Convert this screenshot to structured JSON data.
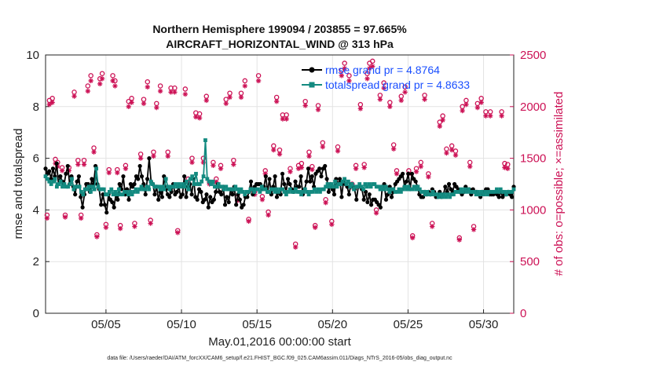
{
  "chart_data": {
    "type": "line",
    "title": "Northern Hemisphere 199094 / 203855 = 97.665%",
    "subtitle": "AIRCRAFT_HORIZONTAL_WIND @ 313 hPa",
    "xlabel": "May.01,2016 00:00:00 start",
    "ylabel": "rmse and totalspread",
    "ylabel_right": "# of obs: o=possible; ×=assimilated",
    "footnote": "data file: /Users/raeder/DAI/ATM_forcXX/CAM6_setup/f.e21.FHIST_BGC.f09_025.CAM6assim.011/Diags_NTrS_2016-05/obs_diag_output.nc",
    "xlim": [
      1,
      32
    ],
    "ylim": [
      0,
      10
    ],
    "ylim_right": [
      0,
      2500
    ],
    "xtick_values": [
      5,
      10,
      15,
      20,
      25,
      30
    ],
    "xtick_labels": [
      "05/05",
      "05/10",
      "05/15",
      "05/20",
      "05/25",
      "05/30"
    ],
    "ytick_values": [
      0,
      2,
      4,
      6,
      8,
      10
    ],
    "ytick_labels": [
      "0",
      "2",
      "4",
      "6",
      "8",
      "10"
    ],
    "ytick_right_values": [
      0,
      500,
      1000,
      1500,
      2000,
      2500
    ],
    "ytick_right_labels": [
      "0",
      "500",
      "1000",
      "1500",
      "2000",
      "2500"
    ],
    "legend_position": "top-right",
    "colors": {
      "rmse": "#000000",
      "spread": "#138a80",
      "obs": "#cc1155",
      "legend": "#1a4fff"
    },
    "series": [
      {
        "name": "rmse grand pr = 4.8764",
        "values": [
          5.6,
          5.4,
          5.5,
          5.2,
          5.6,
          5.3,
          5.8,
          5.0,
          5.3,
          5.1,
          5.0,
          5.4,
          5.7,
          5.0,
          5.3,
          4.9,
          4.6,
          5.1,
          5.3,
          4.5,
          4.1,
          4.6,
          5.0,
          5.0,
          4.7,
          5.2,
          5.0,
          5.7,
          5.0,
          4.8,
          4.2,
          4.6,
          4.2,
          3.9,
          4.6,
          4.4,
          4.3,
          4.1,
          4.6,
          4.4,
          5.0,
          4.8,
          5.3,
          4.6,
          4.8,
          4.4,
          5.0,
          4.9,
          5.0,
          5.3,
          5.2,
          5.7,
          5.3,
          5.0,
          4.6,
          5.2,
          6.0,
          5.1,
          5.0,
          4.6,
          4.9,
          4.4,
          4.7,
          4.5,
          5.3,
          4.8,
          4.6,
          4.5,
          4.7,
          5.0,
          4.6,
          4.7,
          4.9,
          4.5,
          4.6,
          5.3,
          4.5,
          4.9,
          5.0,
          4.6,
          5.2,
          4.5,
          4.4,
          4.8,
          4.7,
          4.3,
          4.4,
          4.6,
          4.1,
          4.5,
          4.3,
          4.4,
          4.7,
          5.0,
          4.7,
          4.6,
          4.9,
          4.2,
          4.5,
          4.3,
          4.8,
          4.6,
          4.9,
          4.2,
          4.6,
          4.4,
          4.1,
          4.2,
          4.5,
          4.5,
          4.7,
          5.1,
          4.6,
          4.9,
          5.0,
          5.0,
          5.0,
          4.8,
          4.9,
          5.3,
          4.7,
          5.2,
          4.6,
          4.9,
          5.3,
          4.5,
          4.7,
          4.6,
          5.4,
          5.0,
          4.7,
          5.2,
          5.0,
          4.8,
          4.7,
          5.1,
          4.9,
          4.9,
          5.3,
          4.6,
          4.8,
          5.1,
          5.6,
          5.1,
          5.3,
          4.9,
          5.4,
          5.5,
          5.6,
          5.3,
          5.6,
          5.7,
          5.2,
          4.7,
          5.0,
          4.8,
          4.6,
          5.2,
          5.0,
          5.2,
          4.5,
          5.1,
          5.0,
          4.9,
          4.6,
          5.0,
          4.9,
          4.8,
          4.4,
          4.9,
          4.9,
          4.8,
          4.4,
          4.7,
          4.3,
          4.6,
          4.2,
          4.4,
          4.4,
          4.3,
          4.2,
          4.1,
          4.9,
          5.0,
          4.4,
          4.6,
          4.9,
          4.5,
          4.7,
          5.0,
          5.1,
          5.2,
          5.3,
          5.4,
          4.9,
          5.1,
          5.4,
          4.8,
          5.4,
          5.2,
          5.1,
          4.9,
          4.6,
          4.5,
          4.5,
          4.7,
          4.6,
          4.7,
          4.6,
          4.8,
          4.7,
          4.5,
          4.5,
          4.7,
          4.5,
          4.6,
          4.9,
          4.7,
          5.0,
          4.8,
          4.7,
          5.0,
          4.9,
          4.8,
          4.7,
          4.6,
          4.7,
          4.9,
          4.8,
          4.8,
          4.6,
          4.8,
          4.7,
          4.7,
          4.6,
          4.5,
          4.7,
          4.7,
          4.8,
          4.8,
          4.6,
          4.6,
          4.6,
          4.7,
          4.6,
          4.5,
          4.7,
          4.5,
          4.6,
          4.6,
          4.7,
          4.6,
          4.5,
          4.9
        ]
      },
      {
        "name": "totalspread grand pr = 4.8633",
        "values": [
          5.3,
          5.2,
          5.1,
          5.0,
          5.1,
          5.2,
          4.9,
          5.0,
          5.1,
          4.9,
          5.0,
          4.9,
          4.9,
          5.0,
          5.2,
          4.8,
          4.9,
          4.9,
          4.9,
          4.7,
          4.6,
          4.8,
          4.8,
          4.9,
          4.7,
          4.9,
          4.8,
          5.6,
          4.9,
          4.8,
          4.8,
          4.8,
          4.6,
          4.6,
          4.7,
          4.8,
          4.6,
          4.7,
          4.6,
          4.8,
          4.6,
          4.6,
          4.7,
          4.7,
          4.6,
          4.7,
          4.6,
          4.7,
          4.8,
          4.7,
          4.8,
          4.9,
          4.8,
          4.8,
          4.9,
          4.8,
          5.1,
          5.0,
          4.9,
          4.9,
          4.9,
          4.8,
          4.9,
          4.8,
          5.2,
          4.9,
          4.8,
          4.9,
          4.9,
          5.0,
          4.9,
          5.0,
          4.9,
          5.0,
          4.9,
          5.1,
          4.8,
          5.2,
          5.3,
          5.0,
          5.4,
          5.0,
          5.0,
          5.1,
          5.3,
          6.7,
          5.2,
          5.1,
          5.0,
          5.1,
          4.9,
          4.9,
          5.0,
          4.9,
          4.9,
          4.8,
          4.9,
          4.8,
          4.8,
          4.8,
          4.8,
          4.9,
          4.8,
          4.7,
          4.8,
          4.7,
          4.6,
          4.7,
          4.7,
          4.8,
          4.8,
          4.7,
          4.8,
          4.8,
          4.7,
          4.9,
          4.8,
          4.8,
          4.7,
          4.7,
          4.8,
          4.8,
          4.7,
          4.8,
          4.7,
          4.8,
          4.8,
          4.7,
          4.6,
          4.7,
          4.8,
          4.7,
          4.7,
          4.8,
          4.7,
          4.7,
          4.6,
          4.7,
          4.8,
          4.7,
          4.6,
          4.7,
          4.7,
          4.8,
          4.7,
          4.8,
          4.7,
          4.8,
          4.8,
          4.9,
          5.0,
          4.9,
          5.0,
          4.9,
          5.1,
          4.9,
          5.0,
          5.0,
          5.1,
          5.2,
          5.0,
          5.1,
          4.9,
          5.0,
          4.8,
          4.9,
          4.9,
          5.0,
          4.9,
          4.8,
          5.0,
          4.9,
          5.0,
          4.9,
          5.0,
          5.0,
          4.9,
          4.9,
          4.8,
          4.9,
          4.8,
          4.9,
          4.8,
          4.7,
          4.8,
          4.8,
          4.7,
          4.7,
          4.8,
          4.7,
          4.8,
          4.9,
          4.8,
          4.9,
          4.8,
          4.8,
          4.9,
          4.8,
          4.9,
          4.8,
          4.7,
          4.7,
          4.6,
          4.7,
          4.6,
          4.6,
          4.7,
          4.6,
          4.6,
          4.5,
          4.6,
          4.5,
          4.6,
          4.5,
          4.6,
          4.5,
          4.6,
          4.6,
          4.7,
          4.7,
          4.7,
          4.8,
          4.7,
          4.8,
          4.7,
          4.8,
          4.7,
          4.7,
          4.7,
          4.6,
          4.7,
          4.6,
          4.7,
          4.6,
          4.7,
          4.6,
          4.7,
          4.7,
          4.7,
          4.7,
          4.8,
          4.7,
          4.8,
          4.7,
          4.7,
          4.6,
          4.7,
          4.7,
          4.7,
          4.8
        ]
      }
    ],
    "obs_possible": [
      [
        1.1,
        950
      ],
      [
        1.25,
        2060
      ],
      [
        1.45,
        2080
      ],
      [
        1.65,
        1490
      ],
      [
        1.8,
        1460
      ],
      [
        2.1,
        1410
      ],
      [
        2.3,
        950
      ],
      [
        2.55,
        1410
      ],
      [
        2.9,
        2140
      ],
      [
        3.15,
        1480
      ],
      [
        3.35,
        950
      ],
      [
        3.55,
        1480
      ],
      [
        3.8,
        2200
      ],
      [
        4.0,
        2300
      ],
      [
        4.2,
        1600
      ],
      [
        4.4,
        760
      ],
      [
        4.6,
        2270
      ],
      [
        4.75,
        2320
      ],
      [
        5.0,
        860
      ],
      [
        5.2,
        1390
      ],
      [
        5.45,
        2300
      ],
      [
        5.6,
        2250
      ],
      [
        5.75,
        1390
      ],
      [
        5.95,
        850
      ],
      [
        6.3,
        1430
      ],
      [
        6.5,
        2050
      ],
      [
        6.7,
        2080
      ],
      [
        6.9,
        870
      ],
      [
        7.3,
        1540
      ],
      [
        7.5,
        2070
      ],
      [
        7.75,
        2240
      ],
      [
        7.95,
        900
      ],
      [
        8.15,
        1560
      ],
      [
        8.35,
        2030
      ],
      [
        8.6,
        2200
      ],
      [
        9.1,
        1560
      ],
      [
        9.3,
        2180
      ],
      [
        9.55,
        2180
      ],
      [
        9.75,
        800
      ],
      [
        10.25,
        2170
      ],
      [
        10.45,
        1300
      ],
      [
        10.7,
        1500
      ],
      [
        10.95,
        1940
      ],
      [
        11.2,
        1930
      ],
      [
        11.45,
        1500
      ],
      [
        11.65,
        2100
      ],
      [
        11.85,
        1270
      ],
      [
        12.1,
        1460
      ],
      [
        12.3,
        1300
      ],
      [
        12.6,
        1430
      ],
      [
        12.95,
        2070
      ],
      [
        13.2,
        2130
      ],
      [
        13.45,
        1480
      ],
      [
        13.7,
        1120
      ],
      [
        13.95,
        2130
      ],
      [
        14.2,
        2250
      ],
      [
        14.45,
        910
      ],
      [
        14.85,
        1180
      ],
      [
        15.1,
        2300
      ],
      [
        15.35,
        1130
      ],
      [
        15.55,
        1380
      ],
      [
        15.75,
        980
      ],
      [
        16.1,
        1620
      ],
      [
        16.3,
        2090
      ],
      [
        16.5,
        1580
      ],
      [
        16.7,
        1920
      ],
      [
        16.95,
        1920
      ],
      [
        17.2,
        1400
      ],
      [
        17.55,
        670
      ],
      [
        17.75,
        1430
      ],
      [
        17.95,
        1450
      ],
      [
        18.2,
        2050
      ],
      [
        18.45,
        1560
      ],
      [
        18.65,
        1420
      ],
      [
        18.85,
        850
      ],
      [
        19.05,
        2010
      ],
      [
        19.35,
        1650
      ],
      [
        19.55,
        1100
      ],
      [
        19.95,
        890
      ],
      [
        20.35,
        1610
      ],
      [
        20.6,
        2350
      ],
      [
        20.8,
        2420
      ],
      [
        21.1,
        2300
      ],
      [
        21.3,
        1250
      ],
      [
        21.55,
        1430
      ],
      [
        21.85,
        2020
      ],
      [
        22.1,
        1440
      ],
      [
        22.3,
        2320
      ],
      [
        22.45,
        2420
      ],
      [
        22.65,
        2440
      ],
      [
        22.9,
        1000
      ],
      [
        23.15,
        2110
      ],
      [
        23.4,
        2230
      ],
      [
        23.8,
        2040
      ],
      [
        24.05,
        1630
      ],
      [
        24.25,
        1380
      ],
      [
        24.55,
        2100
      ],
      [
        24.8,
        2190
      ],
      [
        25.05,
        1380
      ],
      [
        25.3,
        750
      ],
      [
        25.55,
        1400
      ],
      [
        25.85,
        1460
      ],
      [
        26.1,
        2110
      ],
      [
        26.35,
        1350
      ],
      [
        26.6,
        870
      ],
      [
        27.1,
        1850
      ],
      [
        27.3,
        1910
      ],
      [
        27.55,
        1590
      ],
      [
        27.9,
        1620
      ],
      [
        28.15,
        1570
      ],
      [
        28.4,
        730
      ],
      [
        28.6,
        2000
      ],
      [
        28.85,
        2060
      ],
      [
        29.1,
        1460
      ],
      [
        29.35,
        840
      ],
      [
        29.6,
        2030
      ],
      [
        29.85,
        2080
      ],
      [
        30.15,
        1950
      ],
      [
        30.45,
        1950
      ],
      [
        31.2,
        1950
      ],
      [
        31.4,
        1450
      ],
      [
        31.6,
        1440
      ]
    ],
    "obs_assimilated": [
      [
        1.1,
        920
      ],
      [
        1.25,
        2020
      ],
      [
        1.45,
        2040
      ],
      [
        1.65,
        1450
      ],
      [
        1.8,
        1420
      ],
      [
        2.1,
        1380
      ],
      [
        2.3,
        930
      ],
      [
        2.55,
        1380
      ],
      [
        2.9,
        2100
      ],
      [
        3.15,
        1440
      ],
      [
        3.35,
        920
      ],
      [
        3.55,
        1440
      ],
      [
        3.8,
        2150
      ],
      [
        4.0,
        2250
      ],
      [
        4.2,
        1560
      ],
      [
        4.4,
        740
      ],
      [
        4.6,
        2220
      ],
      [
        4.75,
        2270
      ],
      [
        5.0,
        830
      ],
      [
        5.2,
        1360
      ],
      [
        5.45,
        2250
      ],
      [
        5.6,
        2200
      ],
      [
        5.75,
        1360
      ],
      [
        5.95,
        820
      ],
      [
        6.3,
        1400
      ],
      [
        6.5,
        2000
      ],
      [
        6.7,
        2040
      ],
      [
        6.9,
        840
      ],
      [
        7.3,
        1500
      ],
      [
        7.5,
        2030
      ],
      [
        7.75,
        2190
      ],
      [
        7.95,
        870
      ],
      [
        8.15,
        1520
      ],
      [
        8.35,
        1990
      ],
      [
        8.6,
        2150
      ],
      [
        9.1,
        1520
      ],
      [
        9.3,
        2140
      ],
      [
        9.55,
        2140
      ],
      [
        9.75,
        780
      ],
      [
        10.25,
        2120
      ],
      [
        10.45,
        1270
      ],
      [
        10.7,
        1460
      ],
      [
        10.95,
        1900
      ],
      [
        11.2,
        1890
      ],
      [
        11.45,
        1460
      ],
      [
        11.65,
        2060
      ],
      [
        11.85,
        1250
      ],
      [
        12.1,
        1430
      ],
      [
        12.3,
        1270
      ],
      [
        12.6,
        1400
      ],
      [
        12.95,
        2030
      ],
      [
        13.2,
        2090
      ],
      [
        13.45,
        1440
      ],
      [
        13.7,
        1090
      ],
      [
        13.95,
        2090
      ],
      [
        14.2,
        2200
      ],
      [
        14.45,
        890
      ],
      [
        14.85,
        1150
      ],
      [
        15.1,
        2250
      ],
      [
        15.35,
        1100
      ],
      [
        15.55,
        1350
      ],
      [
        15.75,
        950
      ],
      [
        16.1,
        1580
      ],
      [
        16.3,
        2050
      ],
      [
        16.5,
        1540
      ],
      [
        16.7,
        1880
      ],
      [
        16.95,
        1880
      ],
      [
        17.2,
        1370
      ],
      [
        17.55,
        640
      ],
      [
        17.75,
        1400
      ],
      [
        17.95,
        1410
      ],
      [
        18.2,
        2010
      ],
      [
        18.45,
        1520
      ],
      [
        18.65,
        1390
      ],
      [
        18.85,
        830
      ],
      [
        19.05,
        1970
      ],
      [
        19.35,
        1610
      ],
      [
        19.55,
        1070
      ],
      [
        19.95,
        860
      ],
      [
        20.35,
        1570
      ],
      [
        20.6,
        2300
      ],
      [
        20.8,
        2370
      ],
      [
        21.1,
        2250
      ],
      [
        21.3,
        1220
      ],
      [
        21.55,
        1400
      ],
      [
        21.85,
        1980
      ],
      [
        22.1,
        1410
      ],
      [
        22.3,
        2270
      ],
      [
        22.45,
        2370
      ],
      [
        22.65,
        2390
      ],
      [
        22.9,
        970
      ],
      [
        23.15,
        2070
      ],
      [
        23.4,
        2180
      ],
      [
        23.8,
        2000
      ],
      [
        24.05,
        1590
      ],
      [
        24.25,
        1350
      ],
      [
        24.55,
        2060
      ],
      [
        24.8,
        2140
      ],
      [
        25.05,
        1350
      ],
      [
        25.3,
        730
      ],
      [
        25.55,
        1370
      ],
      [
        25.85,
        1420
      ],
      [
        26.1,
        2070
      ],
      [
        26.35,
        1320
      ],
      [
        26.6,
        840
      ],
      [
        27.1,
        1810
      ],
      [
        27.3,
        1870
      ],
      [
        27.55,
        1550
      ],
      [
        27.9,
        1580
      ],
      [
        28.15,
        1530
      ],
      [
        28.4,
        710
      ],
      [
        28.6,
        1960
      ],
      [
        28.85,
        2020
      ],
      [
        29.1,
        1420
      ],
      [
        29.35,
        810
      ],
      [
        29.6,
        1990
      ],
      [
        29.85,
        2040
      ],
      [
        30.15,
        1910
      ],
      [
        30.45,
        1910
      ],
      [
        31.2,
        1910
      ],
      [
        31.4,
        1410
      ],
      [
        31.6,
        1400
      ]
    ]
  }
}
